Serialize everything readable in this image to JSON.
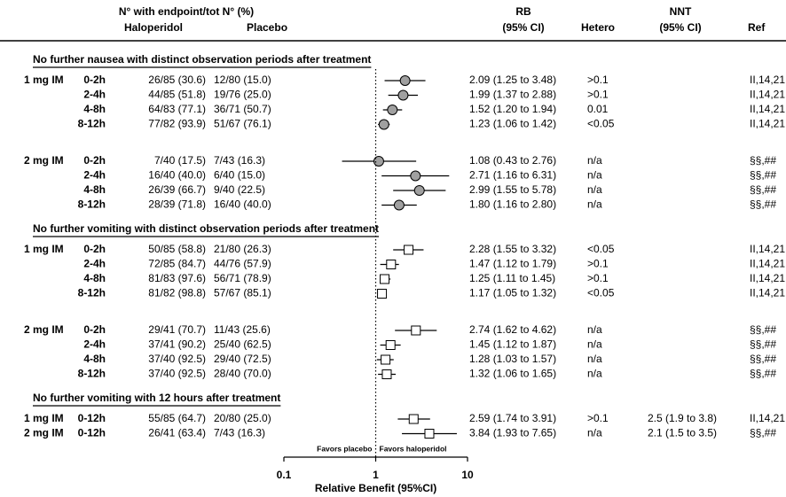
{
  "chart_data": {
    "type": "forest",
    "log_scale": true,
    "header": {
      "counts": "N° with endpoint/tot N° (%)",
      "haloperidol": "Haloperidol",
      "placebo": "Placebo",
      "rb": "RB",
      "rb_ci": "(95% CI)",
      "hetero": "Hetero",
      "nnt": "NNT",
      "nnt_ci": "(95% CI)",
      "ref": "Ref"
    },
    "sections": [
      {
        "title": "No further nausea with distinct observation periods after treatment",
        "marker": "circle",
        "color": "#a0a0a0",
        "groups": [
          [
            {
              "dose": "1 mg IM",
              "period": "0-2h",
              "haloperidol": "26/85 (30.6)",
              "placebo": "12/80 (15.0)",
              "rb": 2.09,
              "lo": 1.25,
              "hi": 3.48,
              "rb_label": "2.09 (1.25 to 3.48)",
              "hetero": ">0.1",
              "ref": "II,14,21"
            },
            {
              "dose": null,
              "period": "2-4h",
              "haloperidol": "44/85 (51.8)",
              "placebo": "19/76 (25.0)",
              "rb": 1.99,
              "lo": 1.37,
              "hi": 2.88,
              "rb_label": "1.99 (1.37 to 2.88)",
              "hetero": ">0.1",
              "ref": "II,14,21"
            },
            {
              "dose": null,
              "period": "4-8h",
              "haloperidol": "64/83 (77.1)",
              "placebo": "36/71 (50.7)",
              "rb": 1.52,
              "lo": 1.2,
              "hi": 1.94,
              "rb_label": "1.52 (1.20 to 1.94)",
              "hetero": "0.01",
              "ref": "II,14,21"
            },
            {
              "dose": null,
              "period": "8-12h",
              "haloperidol": "77/82 (93.9)",
              "placebo": "51/67 (76.1)",
              "rb": 1.23,
              "lo": 1.06,
              "hi": 1.42,
              "rb_label": "1.23 (1.06 to 1.42)",
              "hetero": "<0.05",
              "ref": "II,14,21"
            }
          ],
          [
            {
              "dose": "2 mg IM",
              "period": "0-2h",
              "haloperidol": "7/40 (17.5)",
              "placebo": "7/43 (16.3)",
              "rb": 1.08,
              "lo": 0.43,
              "hi": 2.76,
              "rb_label": "1.08 (0.43 to 2.76)",
              "hetero": "n/a",
              "ref": "§§,##"
            },
            {
              "dose": null,
              "period": "2-4h",
              "haloperidol": "16/40 (40.0)",
              "placebo": "6/40 (15.0)",
              "rb": 2.71,
              "lo": 1.16,
              "hi": 6.31,
              "rb_label": "2.71 (1.16 to 6.31)",
              "hetero": "n/a",
              "ref": "§§,##"
            },
            {
              "dose": null,
              "period": "4-8h",
              "haloperidol": "26/39 (66.7)",
              "placebo": "9/40 (22.5)",
              "rb": 2.99,
              "lo": 1.55,
              "hi": 5.78,
              "rb_label": "2.99 (1.55 to 5.78)",
              "hetero": "n/a",
              "ref": "§§,##"
            },
            {
              "dose": null,
              "period": "8-12h",
              "haloperidol": "28/39 (71.8)",
              "placebo": "16/40 (40.0)",
              "rb": 1.8,
              "lo": 1.16,
              "hi": 2.8,
              "rb_label": "1.80 (1.16 to 2.80)",
              "hetero": "n/a",
              "ref": "§§,##"
            }
          ]
        ]
      },
      {
        "title": "No further vomiting with distinct observation periods after treatment",
        "marker": "square",
        "color": "#ffffff",
        "groups": [
          [
            {
              "dose": "1 mg IM",
              "period": "0-2h",
              "haloperidol": "50/85 (58.8)",
              "placebo": "21/80 (26.3)",
              "rb": 2.28,
              "lo": 1.55,
              "hi": 3.32,
              "rb_label": "2.28 (1.55 to 3.32)",
              "hetero": "<0.05",
              "ref": "II,14,21"
            },
            {
              "dose": null,
              "period": "2-4h",
              "haloperidol": "72/85 (84.7)",
              "placebo": "44/76 (57.9)",
              "rb": 1.47,
              "lo": 1.12,
              "hi": 1.79,
              "rb_label": "1.47 (1.12 to 1.79)",
              "hetero": ">0.1",
              "ref": "II,14,21"
            },
            {
              "dose": null,
              "period": "4-8h",
              "haloperidol": "81/83 (97.6)",
              "placebo": "56/71 (78.9)",
              "rb": 1.25,
              "lo": 1.11,
              "hi": 1.45,
              "rb_label": "1.25 (1.11 to 1.45)",
              "hetero": ">0.1",
              "ref": "II,14,21"
            },
            {
              "dose": null,
              "period": "8-12h",
              "haloperidol": "81/82 (98.8)",
              "placebo": "57/67 (85.1)",
              "rb": 1.17,
              "lo": 1.05,
              "hi": 1.32,
              "rb_label": "1.17 (1.05 to 1.32)",
              "hetero": "<0.05",
              "ref": "II,14,21"
            }
          ],
          [
            {
              "dose": "2 mg IM",
              "period": "0-2h",
              "haloperidol": "29/41 (70.7)",
              "placebo": "11/43 (25.6)",
              "rb": 2.74,
              "lo": 1.62,
              "hi": 4.62,
              "rb_label": "2.74 (1.62 to 4.62)",
              "hetero": "n/a",
              "ref": "§§,##"
            },
            {
              "dose": null,
              "period": "2-4h",
              "haloperidol": "37/41 (90.2)",
              "placebo": "25/40 (62.5)",
              "rb": 1.45,
              "lo": 1.12,
              "hi": 1.87,
              "rb_label": "1.45 (1.12 to 1.87)",
              "hetero": "n/a",
              "ref": "§§,##"
            },
            {
              "dose": null,
              "period": "4-8h",
              "haloperidol": "37/40 (92.5)",
              "placebo": "29/40 (72.5)",
              "rb": 1.28,
              "lo": 1.03,
              "hi": 1.57,
              "rb_label": "1.28 (1.03 to 1.57)",
              "hetero": "n/a",
              "ref": "§§,##"
            },
            {
              "dose": null,
              "period": "8-12h",
              "haloperidol": "37/40 (92.5)",
              "placebo": "28/40 (70.0)",
              "rb": 1.32,
              "lo": 1.06,
              "hi": 1.65,
              "rb_label": "1.32 (1.06 to 1.65)",
              "hetero": "n/a",
              "ref": "§§,##"
            }
          ]
        ]
      },
      {
        "title": "No further vomiting with 12 hours after treatment",
        "marker": "square",
        "color": "#ffffff",
        "groups": [
          [
            {
              "dose": "1 mg IM",
              "period": "0-12h",
              "haloperidol": "55/85 (64.7)",
              "placebo": "20/80 (25.0)",
              "rb": 2.59,
              "lo": 1.74,
              "hi": 3.91,
              "rb_label": "2.59 (1.74 to 3.91)",
              "hetero": ">0.1",
              "nnt": "2.5 (1.9 to 3.8)",
              "ref": "II,14,21"
            },
            {
              "dose": "2 mg IM",
              "period": "0-12h",
              "haloperidol": "26/41 (63.4)",
              "placebo": "7/43 (16.3)",
              "rb": 3.84,
              "lo": 1.93,
              "hi": 7.65,
              "rb_label": "3.84 (1.93 to 7.65)",
              "hetero": "n/a",
              "nnt": "2.1 (1.5 to 3.5)",
              "ref": "§§,##"
            }
          ]
        ]
      }
    ],
    "xlim": [
      0.1,
      10
    ],
    "xticks": [
      0.1,
      1,
      10
    ],
    "favors_left": "Favors placebo",
    "favors_right": "Favors haloperidol",
    "xlabel": "Relative Benefit (95%CI)"
  }
}
